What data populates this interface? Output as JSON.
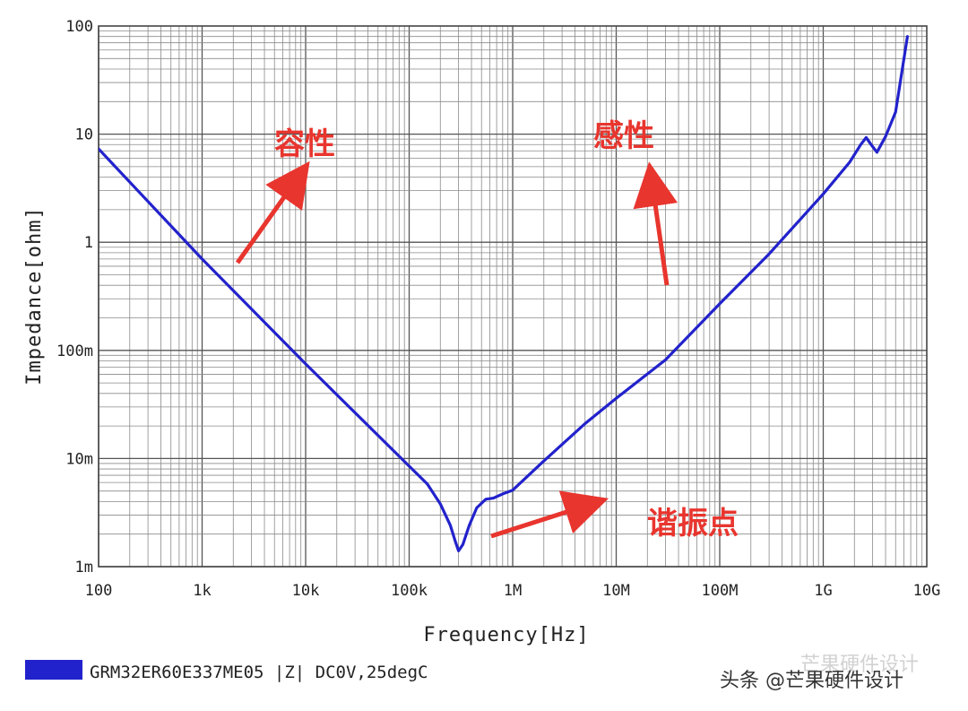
{
  "chart_data": {
    "type": "line",
    "xscale": "log",
    "yscale": "log",
    "xlabel": "Frequency[Hz]",
    "ylabel": "Impedance[ohm]",
    "xlim": [
      100,
      10000000000
    ],
    "ylim": [
      0.001,
      100
    ],
    "grid": true,
    "x_ticks": [
      {
        "value": 100,
        "label": "100"
      },
      {
        "value": 1000,
        "label": "1k"
      },
      {
        "value": 10000,
        "label": "10k"
      },
      {
        "value": 100000,
        "label": "100k"
      },
      {
        "value": 1000000,
        "label": "1M"
      },
      {
        "value": 10000000,
        "label": "10M"
      },
      {
        "value": 100000000,
        "label": "100M"
      },
      {
        "value": 1000000000,
        "label": "1G"
      },
      {
        "value": 10000000000,
        "label": "10G"
      }
    ],
    "y_ticks": [
      {
        "value": 0.001,
        "label": "1m"
      },
      {
        "value": 0.01,
        "label": "10m"
      },
      {
        "value": 0.1,
        "label": "100m"
      },
      {
        "value": 1,
        "label": "1"
      },
      {
        "value": 10,
        "label": "10"
      },
      {
        "value": 100,
        "label": "100"
      }
    ],
    "series": [
      {
        "name": "GRM32ER60E337ME05 |Z| DC0V,25degC",
        "color": "#2222cc",
        "x": [
          100,
          1000,
          10000,
          100000,
          150000,
          200000,
          250000,
          280000,
          300000,
          330000,
          380000,
          450000,
          550000,
          650000,
          800000,
          1000000,
          2000000,
          5000000,
          10000000,
          30000000,
          100000000,
          300000000,
          1000000000,
          1800000000,
          2300000000,
          2600000000,
          2900000000,
          3300000000,
          4000000000,
          5000000000,
          6500000000
        ],
        "y": [
          7.3,
          0.7,
          0.075,
          0.0085,
          0.0058,
          0.0038,
          0.0024,
          0.0017,
          0.0014,
          0.0016,
          0.0024,
          0.0035,
          0.0042,
          0.0043,
          0.0047,
          0.0051,
          0.0095,
          0.021,
          0.036,
          0.082,
          0.27,
          0.78,
          2.8,
          5.5,
          8.0,
          9.3,
          8.0,
          6.8,
          9.5,
          16,
          80
        ]
      }
    ],
    "annotations": [
      {
        "text": "容性",
        "color": "#e8352e"
      },
      {
        "text": "感性",
        "color": "#e8352e"
      },
      {
        "text": "谐振点",
        "color": "#e8352e"
      }
    ]
  },
  "watermark": "头条 @芒果硬件设计",
  "faded_watermark": "芒果硬件设计"
}
